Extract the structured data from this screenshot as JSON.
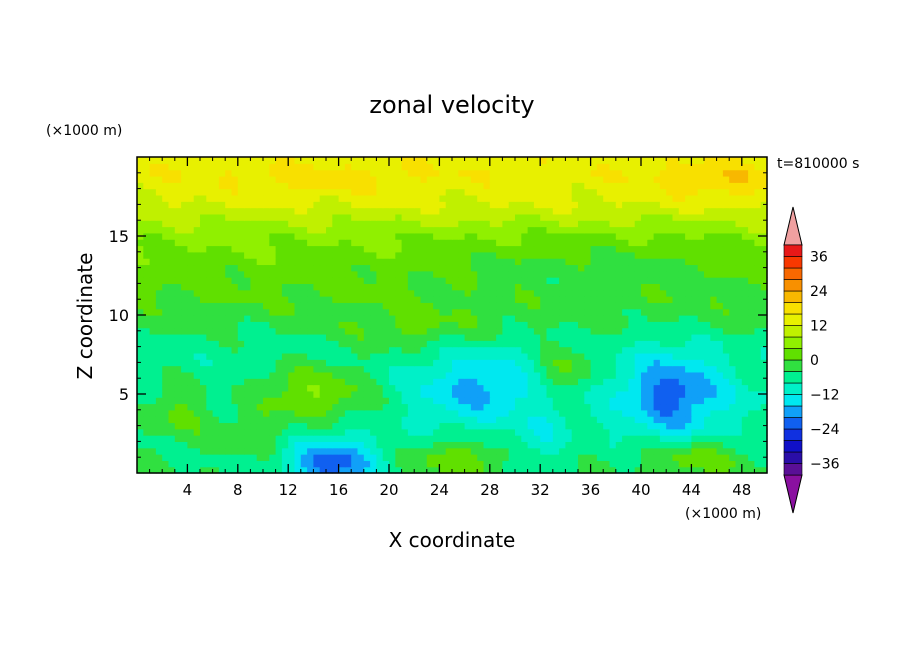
{
  "chart_data": {
    "type": "heatmap",
    "title": "zonal velocity",
    "xlabel": "X coordinate",
    "ylabel": "Z coordinate",
    "x_unit": "(×1000 m)",
    "y_unit": "(×1000 m)",
    "time_label": "t=810000 s",
    "xlim": [
      0,
      50
    ],
    "ylim": [
      0,
      20
    ],
    "x_ticks": [
      4,
      8,
      12,
      16,
      20,
      24,
      28,
      32,
      36,
      40,
      44,
      48
    ],
    "y_ticks": [
      5,
      10,
      15
    ],
    "colorbar": {
      "levels": [
        -40,
        -36,
        -32,
        -28,
        -24,
        -20,
        -16,
        -12,
        -8,
        -4,
        0,
        4,
        8,
        12,
        16,
        20,
        24,
        28,
        32,
        36,
        40
      ],
      "labels": [
        36,
        24,
        12,
        0,
        -12,
        -24,
        -36
      ],
      "colors": [
        "#5a0f96",
        "#2a0ea8",
        "#1010c8",
        "#1030e0",
        "#1060f0",
        "#10a0f8",
        "#00e8f0",
        "#00f0c8",
        "#00f090",
        "#30e040",
        "#60e000",
        "#90f000",
        "#c0f000",
        "#e8f000",
        "#f8e000",
        "#f8b800",
        "#f89000",
        "#f86800",
        "#f83800",
        "#e81818"
      ],
      "over_color": "#f0a0a0",
      "under_color": "#8a10a0"
    },
    "field_model": {
      "comment_free": true,
      "z_profile": [
        [
          0,
          -4
        ],
        [
          2,
          -6
        ],
        [
          5,
          -8
        ],
        [
          8,
          -6
        ],
        [
          11,
          0
        ],
        [
          13,
          2
        ],
        [
          15,
          5
        ],
        [
          17,
          12
        ],
        [
          19,
          15
        ],
        [
          20,
          14
        ]
      ],
      "features": [
        {
          "x": 15.5,
          "z": 0.5,
          "rx": 3.5,
          "rz": 1.8,
          "amp": -18
        },
        {
          "x": 42.5,
          "z": 5.0,
          "rx": 4.0,
          "rz": 2.8,
          "amp": -14
        },
        {
          "x": 27.0,
          "z": 5.5,
          "rx": 5.0,
          "rz": 2.6,
          "amp": -9
        },
        {
          "x": 14.0,
          "z": 5.0,
          "rx": 5.0,
          "rz": 1.8,
          "amp": 12
        },
        {
          "x": 3.0,
          "z": 4.0,
          "rx": 3.0,
          "rz": 2.0,
          "amp": 8
        },
        {
          "x": 25.5,
          "z": 1.0,
          "rx": 4.0,
          "rz": 1.2,
          "amp": 8
        },
        {
          "x": 44.0,
          "z": 1.0,
          "rx": 4.0,
          "rz": 1.2,
          "amp": 8
        },
        {
          "x": 34.0,
          "z": 6.5,
          "rx": 2.5,
          "rz": 1.5,
          "amp": 8
        },
        {
          "x": 36.0,
          "z": 13.0,
          "rx": 12.0,
          "rz": 2.0,
          "amp": -4
        },
        {
          "x": 22.0,
          "z": 9.0,
          "rx": 6.0,
          "rz": 1.5,
          "amp": 5
        },
        {
          "x": 46.0,
          "z": 18.5,
          "rx": 5.0,
          "rz": 1.2,
          "amp": 5
        },
        {
          "x": 15.0,
          "z": 18.5,
          "rx": 8.0,
          "rz": 1.0,
          "amp": 3
        },
        {
          "x": 9.0,
          "z": 2.5,
          "rx": 3.0,
          "rz": 1.2,
          "amp": 6
        },
        {
          "x": 32.0,
          "z": 2.0,
          "rx": 2.0,
          "rz": 1.5,
          "amp": -5
        }
      ]
    }
  }
}
